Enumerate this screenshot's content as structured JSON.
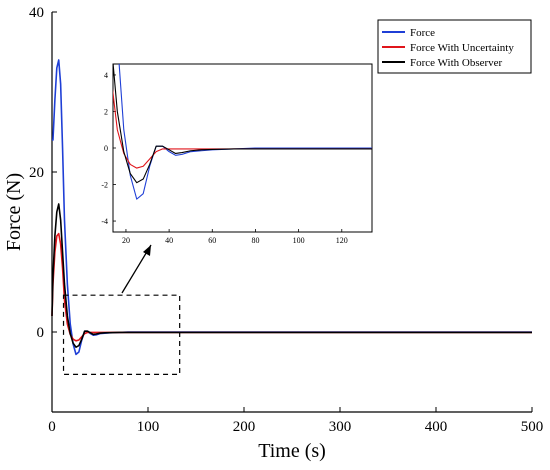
{
  "chart_data": {
    "type": "line",
    "title": "",
    "xlabel": "Time (s)",
    "ylabel": "Force (N)",
    "xlim": [
      0,
      500
    ],
    "ylim": [
      -10,
      40
    ],
    "x_ticks": [
      0,
      100,
      200,
      300,
      400,
      500
    ],
    "y_ticks": [
      0,
      20,
      40
    ],
    "grid": false,
    "legend_position": "top-right",
    "series": [
      {
        "name": "Force",
        "color": "#1f3fd6",
        "x": [
          0,
          1,
          3,
          5,
          7,
          9,
          11,
          13,
          16,
          19,
          22,
          25,
          28,
          31,
          34,
          37,
          40,
          43,
          46,
          50,
          55,
          60,
          70,
          80,
          100,
          500
        ],
        "values": [
          24,
          24,
          29,
          33,
          34,
          31,
          23,
          14,
          6,
          1,
          -1.5,
          -2.8,
          -2.5,
          -1,
          0.1,
          0.1,
          -0.2,
          -0.4,
          -0.35,
          -0.2,
          -0.15,
          -0.1,
          -0.05,
          0,
          0,
          0
        ]
      },
      {
        "name": "Force With Uncertainty",
        "color": "#e0151b",
        "x": [
          0,
          1,
          3,
          5,
          7,
          9,
          11,
          13,
          16,
          19,
          22,
          25,
          28,
          31,
          34,
          37,
          40,
          45,
          50,
          60,
          70,
          80,
          100,
          500
        ],
        "values": [
          2,
          6,
          10,
          12,
          12.3,
          11,
          8,
          4,
          1,
          -0.3,
          -0.9,
          -1.1,
          -1,
          -0.6,
          -0.2,
          -0.05,
          -0.05,
          -0.05,
          -0.05,
          -0.05,
          -0.05,
          -0.05,
          -0.05,
          -0.05
        ]
      },
      {
        "name": "Force With Observer",
        "color": "#000000",
        "x": [
          0,
          1,
          3,
          5,
          7,
          9,
          11,
          13,
          16,
          19,
          22,
          25,
          28,
          31,
          34,
          37,
          40,
          43,
          46,
          50,
          55,
          60,
          70,
          80,
          100,
          500
        ],
        "values": [
          2,
          7,
          12,
          15,
          16,
          14,
          10,
          6,
          2,
          -0.2,
          -1.4,
          -1.9,
          -1.7,
          -0.9,
          0.1,
          0.1,
          -0.1,
          -0.3,
          -0.25,
          -0.15,
          -0.1,
          -0.08,
          -0.05,
          -0.05,
          -0.05,
          -0.05
        ]
      }
    ],
    "inset": {
      "type": "line",
      "xlim": [
        14,
        134
      ],
      "ylim": [
        -4.6,
        4.6
      ],
      "x_ticks": [
        20,
        40,
        60,
        80,
        100,
        120
      ],
      "y_ticks": [
        -4,
        -2,
        0,
        2,
        4
      ],
      "zoom_region": {
        "x": [
          12,
          133
        ],
        "y": [
          -5.3,
          4.6
        ]
      }
    }
  }
}
